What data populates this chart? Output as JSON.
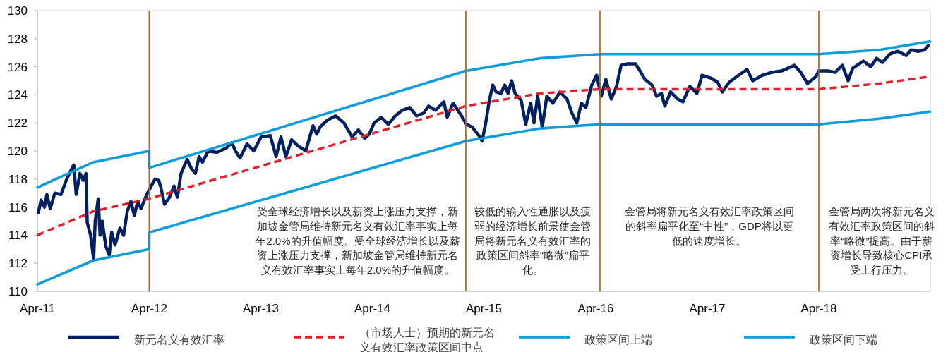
{
  "chart_data": {
    "type": "line",
    "xlim": [
      "2011-04-01",
      "2019-04-01"
    ],
    "xticks": [
      {
        "value": "2011-04",
        "label": "Apr-11"
      },
      {
        "value": "2012-04",
        "label": "Apr-12"
      },
      {
        "value": "2013-04",
        "label": "Apr-13"
      },
      {
        "value": "2014-04",
        "label": "Apr-14"
      },
      {
        "value": "2015-04",
        "label": "Apr-15"
      },
      {
        "value": "2016-04",
        "label": "Apr-16"
      },
      {
        "value": "2017-04",
        "label": "Apr-17"
      },
      {
        "value": "2018-04",
        "label": "Apr-18"
      }
    ],
    "ylim": [
      110,
      130
    ],
    "yticks": [
      110,
      112,
      114,
      116,
      118,
      120,
      122,
      124,
      126,
      128,
      130
    ],
    "grid": false,
    "legend": "bottom",
    "series": [
      {
        "name": "新元名义有效汇率",
        "color": "#002060",
        "x": [
          "2011-04-04",
          "2011-04-13",
          "2011-04-24",
          "2011-05-02",
          "2011-05-13",
          "2011-05-28",
          "2011-06-17",
          "2011-07-06",
          "2011-07-17",
          "2011-07-29",
          "2011-08-06",
          "2011-08-18",
          "2011-08-29",
          "2011-09-07",
          "2011-09-11",
          "2011-09-22",
          "2011-10-02",
          "2011-10-07",
          "2011-10-17",
          "2011-10-23",
          "2011-10-30",
          "2011-11-11",
          "2011-11-22",
          "2011-11-30",
          "2011-12-11",
          "2011-12-27",
          "2012-01-08",
          "2012-01-20",
          "2012-02-01",
          "2012-02-12",
          "2012-02-23",
          "2012-03-05",
          "2012-03-24",
          "2012-04-05",
          "2012-04-20",
          "2012-05-02",
          "2012-05-09",
          "2012-05-21",
          "2012-06-06",
          "2012-06-21",
          "2012-07-02",
          "2012-07-14",
          "2012-08-03",
          "2012-08-18",
          "2012-08-30",
          "2012-09-11",
          "2012-09-22",
          "2012-10-11",
          "2012-11-08",
          "2012-12-08",
          "2012-12-27",
          "2013-01-08",
          "2013-01-23",
          "2013-02-15",
          "2013-03-09",
          "2013-04-02",
          "2013-05-02",
          "2013-05-21",
          "2013-06-06",
          "2013-06-22",
          "2013-07-11",
          "2013-07-30",
          "2013-08-26",
          "2013-09-19",
          "2013-10-01",
          "2013-10-12",
          "2013-11-05",
          "2013-12-02",
          "2013-12-29",
          "2014-01-25",
          "2014-02-14",
          "2014-03-07",
          "2014-03-22",
          "2014-04-07",
          "2014-04-30",
          "2014-05-23",
          "2014-06-15",
          "2014-07-08",
          "2014-08-01",
          "2014-08-24",
          "2014-09-16",
          "2014-10-02",
          "2014-10-25",
          "2014-11-21",
          "2014-12-02",
          "2014-12-21",
          "2015-01-18",
          "2015-02-03",
          "2015-02-22",
          "2015-03-19",
          "2015-03-26",
          "2015-04-07",
          "2015-04-19",
          "2015-04-30",
          "2015-05-11",
          "2015-05-27",
          "2015-06-08",
          "2015-06-19",
          "2015-07-01",
          "2015-07-12",
          "2015-08-01",
          "2015-08-16",
          "2015-09-01",
          "2015-09-12",
          "2015-09-24",
          "2015-10-09",
          "2015-10-24",
          "2015-11-13",
          "2015-12-06",
          "2015-12-29",
          "2016-01-14",
          "2016-01-30",
          "2016-02-14",
          "2016-02-29",
          "2016-03-19",
          "2016-04-04",
          "2016-04-19",
          "2016-05-04",
          "2016-05-22",
          "2016-06-08",
          "2016-06-23",
          "2016-07-12",
          "2016-08-09",
          "2016-08-24",
          "2016-09-09",
          "2016-10-02",
          "2016-10-17",
          "2016-11-02",
          "2016-11-13",
          "2016-12-02",
          "2016-12-25",
          "2017-01-11",
          "2017-02-03",
          "2017-02-26",
          "2017-03-15",
          "2017-04-12",
          "2017-05-05",
          "2017-05-20",
          "2017-06-12",
          "2017-07-13",
          "2017-08-09",
          "2017-08-28",
          "2017-09-29",
          "2017-10-29",
          "2017-11-30",
          "2018-01-11",
          "2018-02-01",
          "2018-02-23",
          "2018-03-23",
          "2018-04-01",
          "2018-05-01",
          "2018-05-24",
          "2018-06-17",
          "2018-07-06",
          "2018-07-21",
          "2018-08-25",
          "2018-09-18",
          "2018-10-07",
          "2018-10-26",
          "2018-11-19",
          "2018-12-16",
          "2019-01-12",
          "2019-01-28",
          "2019-02-20",
          "2019-03-13",
          "2019-03-25"
        ],
        "values": [
          115.6,
          116.5,
          116.0,
          116.9,
          115.9,
          117.0,
          116.9,
          118.0,
          118.5,
          119.0,
          116.9,
          118.4,
          117.9,
          118.4,
          114.9,
          114.0,
          112.3,
          115.0,
          116.6,
          114.0,
          115.0,
          113.2,
          112.6,
          114.2,
          113.3,
          114.5,
          114.0,
          115.7,
          116.4,
          115.4,
          116.4,
          115.9,
          116.9,
          117.4,
          118.0,
          117.9,
          117.4,
          116.2,
          116.7,
          117.5,
          116.7,
          118.4,
          119.4,
          118.7,
          118.4,
          119.6,
          119.2,
          120.0,
          119.9,
          120.2,
          120.6,
          120.0,
          119.5,
          120.5,
          120.0,
          121.0,
          121.1,
          119.6,
          121.0,
          119.6,
          120.8,
          120.4,
          120.0,
          121.8,
          121.2,
          121.7,
          122.2,
          122.5,
          122.0,
          121.0,
          121.5,
          120.9,
          121.2,
          122.0,
          122.4,
          121.9,
          122.5,
          122.9,
          123.1,
          122.5,
          122.7,
          123.2,
          122.9,
          123.5,
          122.4,
          123.4,
          122.5,
          121.9,
          121.7,
          121.0,
          120.7,
          122.0,
          123.6,
          124.7,
          124.2,
          124.1,
          124.7,
          124.1,
          125.0,
          124.1,
          123.6,
          121.9,
          123.4,
          122.0,
          123.9,
          121.7,
          123.9,
          123.4,
          124.2,
          123.7,
          122.7,
          122.0,
          123.4,
          123.1,
          124.7,
          125.4,
          123.9,
          125.1,
          123.7,
          124.6,
          126.1,
          126.2,
          126.2,
          125.7,
          125.1,
          124.7,
          123.9,
          124.1,
          123.2,
          124.2,
          123.7,
          123.5,
          124.6,
          124.1,
          125.4,
          125.2,
          124.9,
          124.2,
          124.9,
          125.4,
          125.8,
          125.0,
          125.4,
          125.6,
          125.7,
          126.1,
          125.6,
          124.8,
          125.3,
          125.7,
          125.7,
          125.6,
          126.1,
          125.0,
          125.9,
          126.4,
          126.0,
          126.6,
          126.3,
          126.9,
          127.1,
          126.8,
          127.2,
          127.1,
          127.2,
          127.5
        ]
      },
      {
        "name": "（市场人士）预期的新元名义有效汇率政策区间中点",
        "color": "#e3202a",
        "line_style": "dashed",
        "x": [
          "2011-04-01",
          "2011-10",
          "2012-04",
          "2015-02",
          "2015-10",
          "2016-04-15",
          "2018-04",
          "2018-10-15",
          "2019-03-31"
        ],
        "values": [
          114.0,
          115.7,
          116.6,
          123.2,
          124.1,
          124.4,
          124.4,
          124.8,
          125.3
        ]
      },
      {
        "name": "政策区间上端",
        "color": "#0d9ddb",
        "x": [
          "2011-04-01",
          "2011-10",
          "2012-04",
          "2012-04",
          "2015-02",
          "2015-10",
          "2016-04-15",
          "2018-04",
          "2018-10-15",
          "2019-03-31"
        ],
        "values": [
          117.4,
          119.2,
          120.0,
          118.8,
          125.7,
          126.6,
          126.9,
          126.9,
          127.2,
          127.8
        ]
      },
      {
        "name": "政策区间下端",
        "color": "#0d9ddb",
        "x": [
          "2011-04-01",
          "2011-10",
          "2012-04",
          "2012-04",
          "2015-02",
          "2015-10",
          "2016-04-15",
          "2018-04",
          "2018-10-15",
          "2019-03-31"
        ],
        "values": [
          110.5,
          112.2,
          113.0,
          114.2,
          120.7,
          121.6,
          121.9,
          121.9,
          122.3,
          122.8
        ]
      }
    ],
    "ref_lines": [
      {
        "axis": "x",
        "value": "2012-04",
        "color": "#c55a11"
      },
      {
        "axis": "x",
        "value": "2015-02",
        "color": "#c55a11"
      },
      {
        "axis": "x",
        "value": "2016-04-15",
        "color": "#c55a11"
      },
      {
        "axis": "x",
        "value": "2018-04",
        "color": "#c55a11"
      }
    ],
    "annotations": [
      "受全球经济增长以及薪资上涨压力支撑，新加坡金管局维持新元名义有效汇率事实上每年2.0%的升值幅度。受全球经济增长以及薪资上涨压力支撑，新加坡金管局维持新元名义有效汇率事实上每年2.0%的升值幅度。",
      "较低的输入性通胀以及疲弱的经济增长前景使金管局将新元名义有效汇率的政策区间斜率“略微”扁平化。",
      "金管局将新元名义有效汇率政策区间的斜率扁平化至“中性”，GDP将以更低的速度增长。",
      "金管局两次将新元名义有效汇率政策区间的斜率“略微”提高。由于薪资增长导致核心CPI承受上行压力。"
    ]
  }
}
